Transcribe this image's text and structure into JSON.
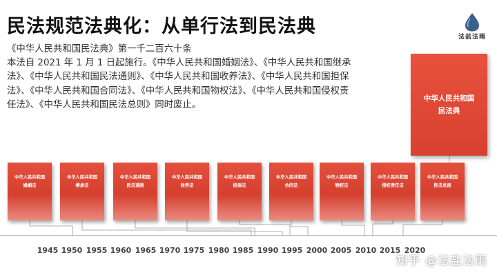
{
  "title": "民法规范法典化：从单行法到民法典",
  "logo": {
    "name": "法盐法雨"
  },
  "description": {
    "line1": "《中华人民共和国民法典》第一千二百六十条",
    "line2": "本法自 2021 年 1 月 1 日起施行。《中华人民共和国婚姻法》、《中华人民共和国继承法》、《中华人民共和国民法通则》、《中华人民共和国收养法》、《中华人民共和国担保法》、《中华人民共和国合同法》、《中华人民共和国物权法》、《中华人民共和国侵权责任法》、《中华人民共和国民法总则》同时废止。"
  },
  "code_book": {
    "label": "中华人民共和国民法典"
  },
  "books": [
    {
      "line1": "中华人民共和国",
      "line2": "婚姻法"
    },
    {
      "line1": "中华人民共和国",
      "line2": "继承法"
    },
    {
      "line1": "中华人民共和国",
      "line2": "民法通则"
    },
    {
      "line1": "中华人民共和国",
      "line2": "收养法"
    },
    {
      "line1": "中华人民共和国",
      "line2": "担保法"
    },
    {
      "line1": "中华人民共和国",
      "line2": "合同法"
    },
    {
      "line1": "中华人民共和国",
      "line2": "物权法"
    },
    {
      "line1": "中华人民共和国",
      "line2": "侵权责任法"
    },
    {
      "line1": "中华人民共和国",
      "line2": "民法总则"
    }
  ],
  "timeline": {
    "years": [
      "1945",
      "1950",
      "1955",
      "1960",
      "1965",
      "1970",
      "1975",
      "1980",
      "1985",
      "1990",
      "1995",
      "2000",
      "2005",
      "2010",
      "2015",
      "2020"
    ]
  },
  "watermark": "知乎 @法盐法雨",
  "colors": {
    "book_red": "#e4503d",
    "line_gray": "#888888"
  }
}
